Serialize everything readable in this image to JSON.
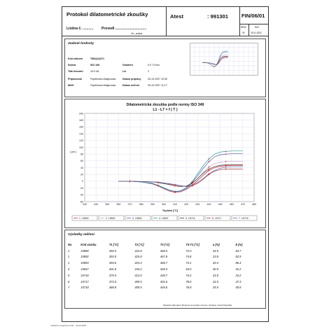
{
  "header": {
    "title": "Protokol dilatometrické zkoušky",
    "atest_label": "Atest",
    "atest_number": ": 991301",
    "form_code": "FIN/06/01",
    "listina_label": "Listina č. ...........",
    "provedl_label": "Provedl ................................",
    "podpis_label": "Jm., podpis",
    "rev_label": "REW.",
    "rev_value": "00",
    "dat_label": "DAT.",
    "dat_value": "25.11.2002"
  },
  "zadane": {
    "heading": "Zadané hodnoty",
    "kod_label": "Kód zařízení",
    "kod_value": "TMA(11)071",
    "norma_label": "Norma",
    "norma_value": "ISO 349",
    "gradient_label": "Gradient",
    "gradient_value": "5.0 °C/min",
    "tlak_label": "Tlak lisování",
    "tlak_value": "15.0 kN",
    "lis_label": "Lis",
    "lis_value": "2",
    "pripravil_label": "Připravovat",
    "pripravil_value": "Popilenska Malgorzata",
    "datum_pripravy_label": "Datum přípravy",
    "datum_pripravy_value": "09.10.2007 10:50",
    "meril_label": "Měřil",
    "meril_value": "Popilenska Malgorzata",
    "datum_mereni_label": "Datum měření",
    "datum_mereni_value": "09.10.2007 11:17"
  },
  "chart_data": {
    "type": "line",
    "title": "Dilatometrická zkouška podle normy ISO 349",
    "subtitle": "L1 - L7 = f ( T )",
    "xlabel": "Teplota [°C]",
    "ylabel": "[ μm ]",
    "xlim": [
      330,
      480
    ],
    "ylim": [
      -60,
      200
    ],
    "xticks": [
      330,
      340,
      350,
      360,
      370,
      380,
      390,
      400,
      410,
      420,
      430,
      440,
      450,
      460,
      470,
      480
    ],
    "yticks": [
      -60,
      -40,
      -20,
      0,
      20,
      40,
      60,
      80,
      100,
      120,
      140,
      160,
      180,
      200
    ],
    "grid": true,
    "legend_placement": "bottom",
    "series": [
      {
        "name": "1. 15890",
        "color": "#cc2222",
        "x": [
          360,
          370,
          380,
          390,
          395,
          400,
          405,
          410,
          415,
          420,
          425,
          430,
          435,
          440,
          445,
          450,
          455,
          460,
          470
        ],
        "y": [
          0,
          0,
          -2,
          -8,
          -14,
          -22,
          -29,
          -33,
          -31,
          -24,
          -12,
          2,
          18,
          32,
          40,
          44,
          46,
          47,
          47
        ]
      },
      {
        "name": "2. 15892",
        "color": "#c8a0c8",
        "x": [
          360,
          370,
          380,
          390,
          395,
          400,
          405,
          410,
          415,
          420,
          425,
          430,
          435,
          440,
          445,
          450,
          455,
          460,
          470
        ],
        "y": [
          0,
          0,
          -2,
          -7,
          -13,
          -21,
          -28,
          -32,
          -30,
          -22,
          -8,
          8,
          26,
          42,
          52,
          56,
          58,
          59,
          59
        ]
      },
      {
        "name": "3. 15893",
        "color": "#5a5aa8",
        "x": [
          360,
          370,
          380,
          390,
          395,
          400,
          405,
          410,
          415,
          420,
          425,
          430,
          435,
          440,
          445,
          450,
          455,
          460,
          470
        ],
        "y": [
          0,
          0,
          -2,
          -7,
          -13,
          -20,
          -27,
          -31,
          -29,
          -20,
          -4,
          16,
          38,
          58,
          72,
          78,
          80,
          81,
          82
        ]
      },
      {
        "name": "4. 15657",
        "color": "#2a9a9a",
        "x": [
          360,
          370,
          380,
          390,
          395,
          400,
          405,
          410,
          415,
          420,
          425,
          430,
          435,
          440,
          445,
          450,
          455,
          460,
          470
        ],
        "y": [
          0,
          0,
          -2,
          -6,
          -12,
          -19,
          -26,
          -30,
          -28,
          -19,
          -2,
          22,
          46,
          66,
          80,
          86,
          88,
          89,
          90
        ]
      },
      {
        "name": "5. 15716",
        "color": "#333333",
        "x": [
          360,
          370,
          380,
          390,
          395,
          400,
          405,
          410,
          415,
          420,
          425,
          430,
          435,
          440,
          445,
          450,
          455,
          460,
          470
        ],
        "y": [
          0,
          0,
          -1,
          -2,
          -4,
          -7,
          -10,
          -14,
          -16,
          -14,
          -6,
          8,
          24,
          36,
          43,
          47,
          48,
          49,
          49
        ]
      },
      {
        "name": "6. 15717",
        "color": "#a04040",
        "x": [
          360,
          370,
          380,
          390,
          395,
          400,
          405,
          410,
          415,
          420,
          425,
          430,
          435,
          440,
          445,
          450,
          455,
          460,
          470
        ],
        "y": [
          0,
          0,
          -1,
          -2,
          -3,
          -5,
          -8,
          -11,
          -14,
          -16,
          -14,
          -6,
          6,
          20,
          30,
          34,
          36,
          36,
          36
        ]
      },
      {
        "name": "7. 15718",
        "color": "#6060a0",
        "x": [
          360,
          370,
          380,
          390,
          395,
          400,
          405,
          410,
          415,
          420,
          425,
          430,
          435,
          440,
          445,
          450,
          455,
          460,
          470
        ],
        "y": [
          0,
          0,
          -1,
          -2,
          -3,
          -5,
          -7,
          -10,
          -13,
          -15,
          -12,
          -4,
          8,
          22,
          32,
          38,
          42,
          43,
          43
        ]
      }
    ]
  },
  "results": {
    "heading": "Výsledky měření",
    "columns": [
      "No",
      "Kód vzorku",
      "T1 [°C]",
      "T2 [°C]",
      "T3 [°C]",
      "T3-T1 [°C]",
      "a [%]",
      "b [%]"
    ],
    "rows": [
      [
        "1",
        "15890",
        "394.5",
        "424.8",
        "466.5",
        "72.0",
        "34.5",
        "84.7"
      ],
      [
        "1",
        "15892",
        "393.0",
        "425.8",
        "467.8",
        "74.8",
        "23.8",
        "82.9"
      ],
      [
        "1",
        "15893",
        "393.6",
        "423.4",
        "466.7",
        "73.1",
        "20.4",
        "86.4"
      ],
      [
        "4",
        "15657",
        "401.8",
        "434.2",
        "465.3",
        "63.5",
        "30.9",
        "32.2"
      ],
      [
        "5",
        "15716",
        "375.5",
        "412.0",
        "449.7",
        "74.2",
        "33.0",
        "34.2"
      ],
      [
        "6",
        "15717",
        "373.0",
        "409.5",
        "451.6",
        "78.6",
        "33.5",
        "47.3"
      ],
      [
        "7",
        "15718",
        "368.8",
        "409.5",
        "445.6",
        "76.8",
        "35.5",
        "50.8"
      ]
    ]
  },
  "footer": {
    "company": "Zkušební laboratoř, Business Innovation Centre, Ostrava, Czech Republic",
    "print_note": "Vytištěno programem DIL · 09.10.2007"
  }
}
